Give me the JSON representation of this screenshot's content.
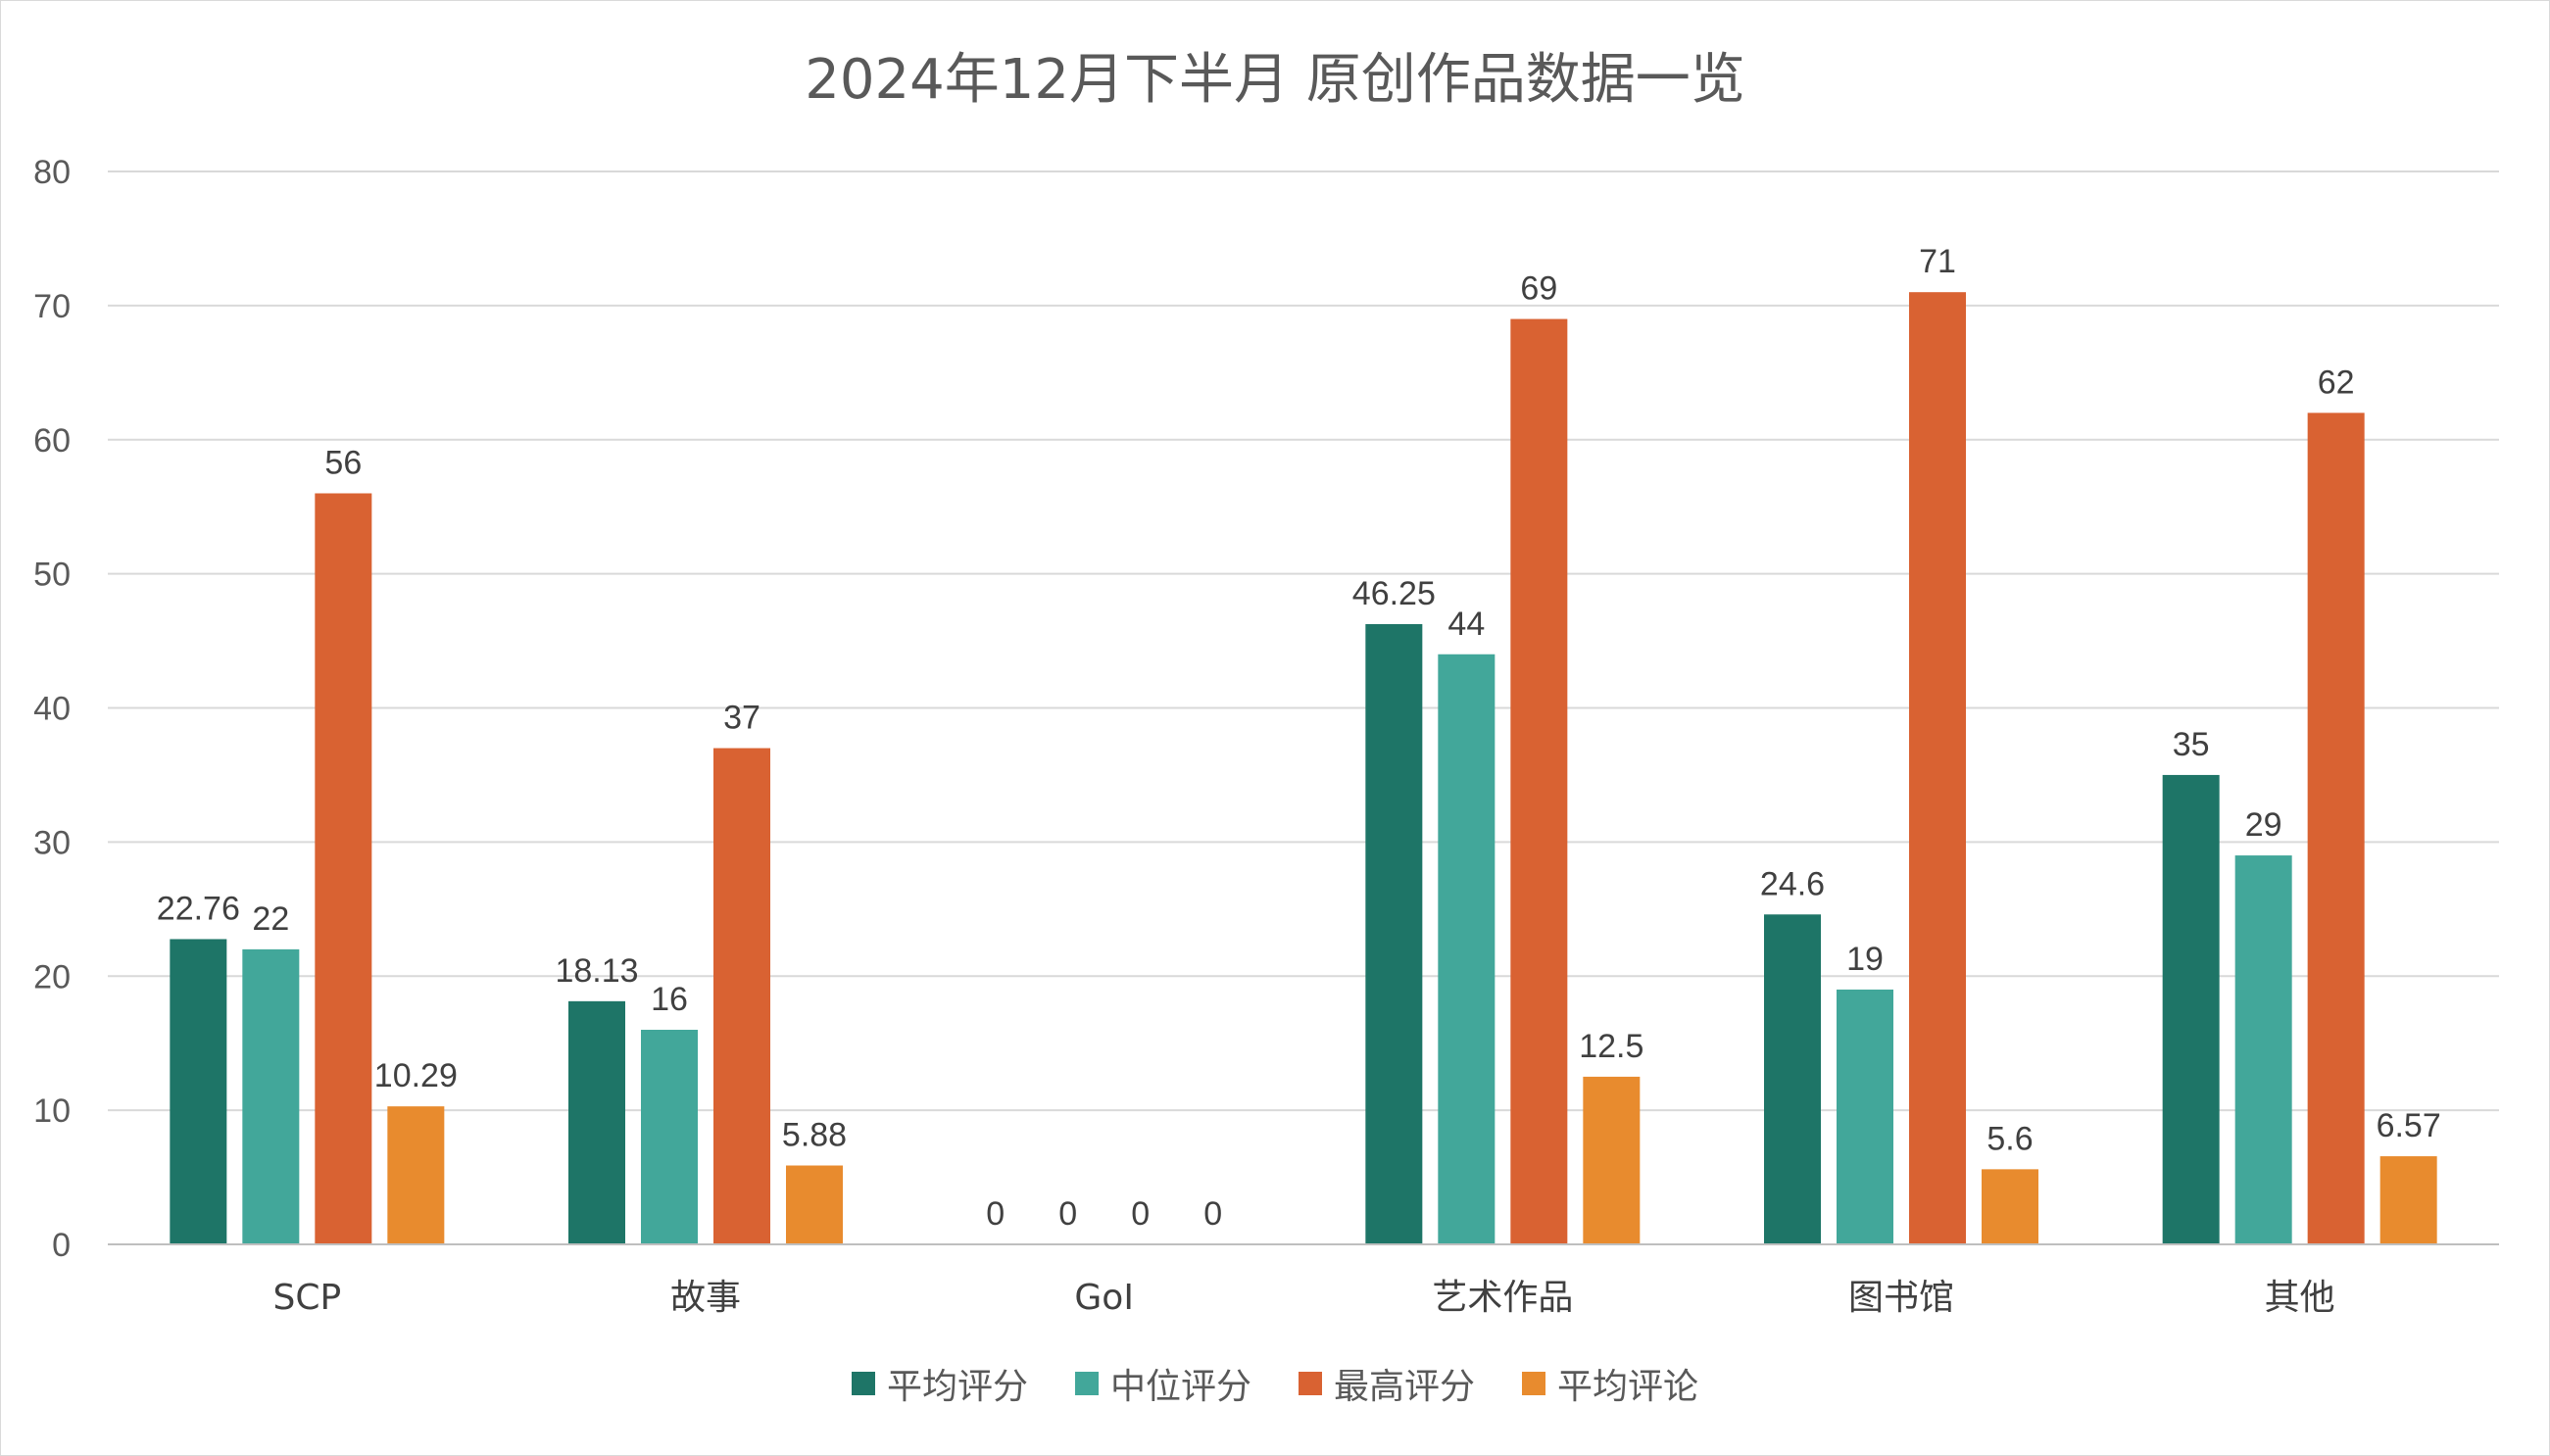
{
  "chart_data": {
    "type": "bar",
    "title": "2024年12月下半月 原创作品数据一览",
    "categories": [
      "SCP",
      "故事",
      "GoI",
      "艺术作品",
      "图书馆",
      "其他"
    ],
    "series": [
      {
        "name": "平均评分",
        "color": "#1e7567",
        "values": [
          22.76,
          18.13,
          0,
          46.25,
          24.6,
          35
        ]
      },
      {
        "name": "中位评分",
        "color": "#42a79a",
        "values": [
          22,
          16,
          0,
          44,
          19,
          29
        ]
      },
      {
        "name": "最高评分",
        "color": "#d96232",
        "values": [
          56,
          37,
          0,
          69,
          71,
          62
        ]
      },
      {
        "name": "平均评论",
        "color": "#e88b2e",
        "values": [
          10.29,
          5.88,
          0,
          12.5,
          5.6,
          6.57
        ]
      }
    ],
    "ylim": [
      0,
      80
    ],
    "yticks": [
      0,
      10,
      20,
      30,
      40,
      50,
      60,
      70,
      80
    ],
    "xlabel": "",
    "ylabel": "",
    "grid": true,
    "legend_position": "bottom"
  }
}
